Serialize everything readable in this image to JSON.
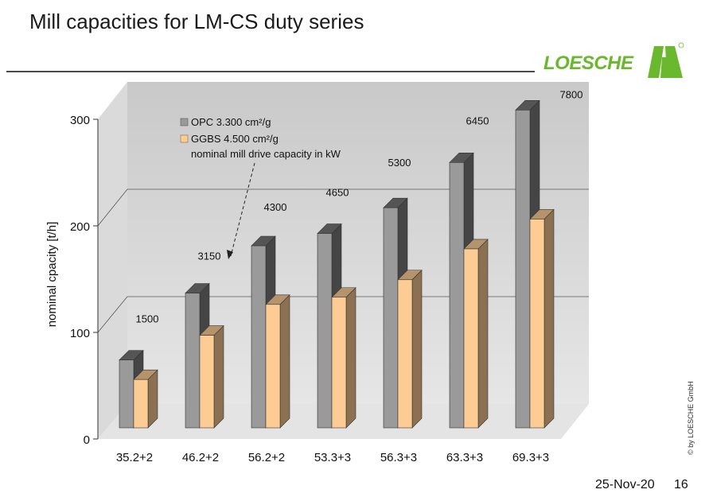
{
  "page": {
    "title": "Mill capacities for LM-CS duty series",
    "logo_text": "LOESCHE",
    "copyright": "© by LOESCHE GmbH",
    "footer_date": "25-Nov-20",
    "page_number": "16"
  },
  "colors": {
    "opc": "#9a9a9a",
    "ggbs": "#fccc94",
    "wall": "#cfcfcf",
    "floor": "#e2e2e2",
    "brand_green": "#6ab82e"
  },
  "chart_data": {
    "type": "bar",
    "categories": [
      "35.2+2",
      "46.2+2",
      "56.2+2",
      "53.3+3",
      "56.3+3",
      "63.3+3",
      "69.3+3"
    ],
    "series": [
      {
        "name": "OPC 3.300 cm²/g",
        "values": [
          66,
          131,
          177,
          189,
          214,
          258,
          309
        ]
      },
      {
        "name": "GGBS 4.500 cm²/g",
        "values": [
          47,
          90,
          120,
          127,
          144,
          174,
          203
        ]
      }
    ],
    "drive_capacity_label": "nominal mill drive capacity in kW",
    "drive_capacity_values": [
      "1500",
      "3150",
      "4300",
      "4650",
      "5300",
      "6450",
      "7800"
    ],
    "ylabel": "nominal cpacity [t/h]",
    "xlabel": "",
    "ylim": [
      0,
      300
    ],
    "yticks": [
      "0",
      "100",
      "200",
      "300"
    ],
    "grid": true,
    "legend_position": "top-left"
  }
}
